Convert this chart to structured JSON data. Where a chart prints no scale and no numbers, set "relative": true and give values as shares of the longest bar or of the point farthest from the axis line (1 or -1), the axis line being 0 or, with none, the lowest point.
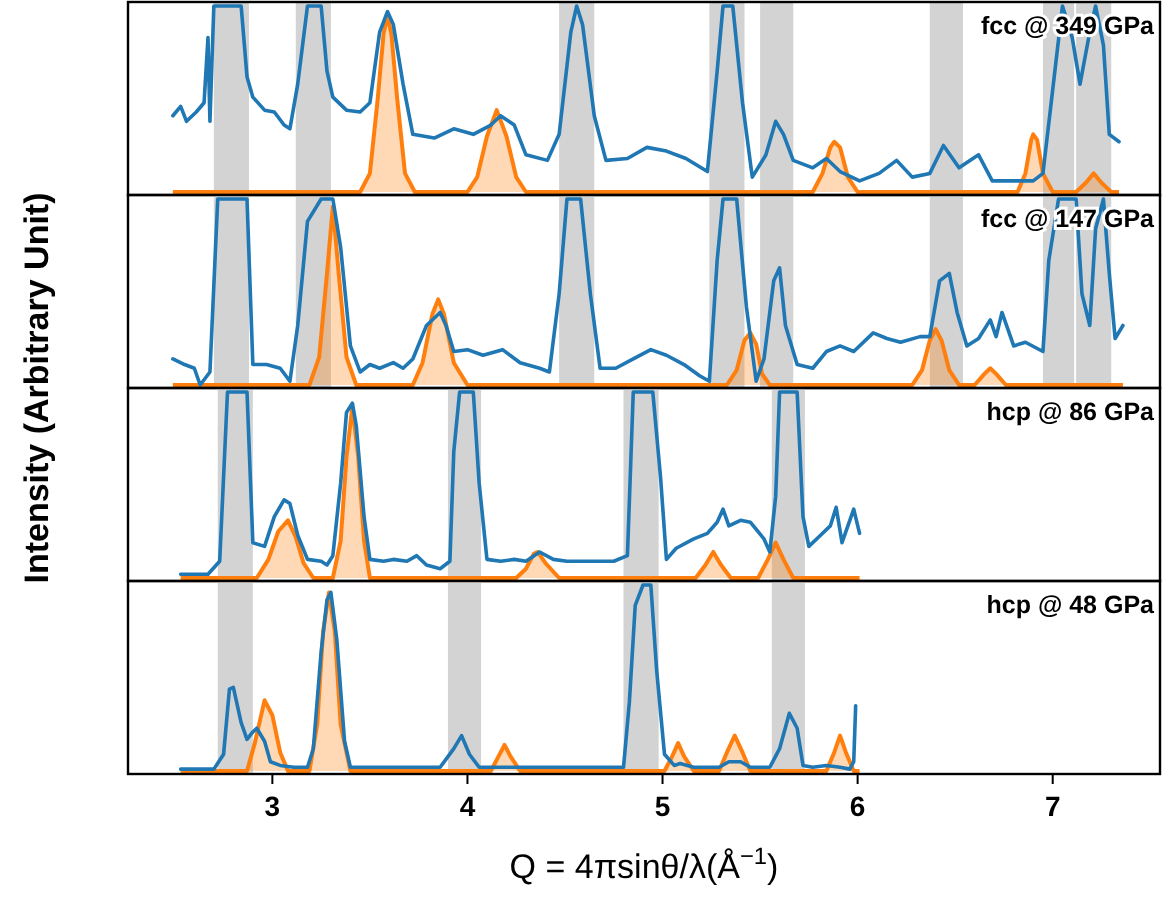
{
  "chart_data": [
    {
      "type": "line",
      "relative": true,
      "ylabel": "Intensity (Arbitrary Unit)",
      "xlim": [
        2.26,
        7.55
      ],
      "xticks": [
        3,
        4,
        5,
        6,
        7
      ],
      "tick_labels": false,
      "annotations": [
        "fcc @ 349 GPa"
      ],
      "bands": [
        {
          "axis": "x",
          "from": 2.7,
          "to": 2.88,
          "color": "#d3d3d3"
        },
        {
          "axis": "x",
          "from": 3.12,
          "to": 3.3,
          "color": "#d3d3d3"
        },
        {
          "axis": "x",
          "from": 4.47,
          "to": 4.65,
          "color": "#d3d3d3"
        },
        {
          "axis": "x",
          "from": 5.24,
          "to": 5.42,
          "color": "#d3d3d3"
        },
        {
          "axis": "x",
          "from": 5.5,
          "to": 5.67,
          "color": "#d3d3d3"
        },
        {
          "axis": "x",
          "from": 6.37,
          "to": 6.54,
          "color": "#d3d3d3"
        },
        {
          "axis": "x",
          "from": 6.95,
          "to": 7.11,
          "color": "#d3d3d3"
        },
        {
          "axis": "x",
          "from": 7.12,
          "to": 7.3,
          "color": "#d3d3d3"
        }
      ],
      "series": [
        {
          "type": "area",
          "color": "#ff7f0e",
          "x": [
            2.49,
            3.45,
            3.5,
            3.54,
            3.57,
            3.59,
            3.61,
            3.64,
            3.68,
            3.73,
            4.0,
            4.05,
            4.1,
            4.15,
            4.2,
            4.25,
            4.3,
            5.77,
            5.82,
            5.86,
            5.88,
            5.91,
            5.95,
            6.0,
            6.82,
            6.86,
            6.89,
            6.9,
            6.92,
            6.95,
            7.0,
            7.12,
            7.17,
            7.21,
            7.25,
            7.3,
            7.34
          ],
          "values": [
            0,
            0,
            0.1,
            0.5,
            0.85,
            0.95,
            0.85,
            0.5,
            0.1,
            0,
            0,
            0.08,
            0.3,
            0.44,
            0.3,
            0.08,
            0,
            0,
            0.1,
            0.24,
            0.27,
            0.24,
            0.08,
            0,
            0,
            0.1,
            0.28,
            0.31,
            0.28,
            0.1,
            0,
            0,
            0.05,
            0.1,
            0.05,
            0,
            0
          ]
        },
        {
          "type": "line",
          "color": "#1f77b4",
          "x": [
            2.49,
            2.53,
            2.56,
            2.61,
            2.65,
            2.67,
            2.68,
            2.7,
            2.77,
            2.84,
            2.87,
            2.9,
            2.96,
            3.01,
            3.06,
            3.09,
            3.13,
            3.18,
            3.21,
            3.25,
            3.28,
            3.31,
            3.38,
            3.45,
            3.5,
            3.55,
            3.59,
            3.62,
            3.67,
            3.72,
            3.83,
            3.93,
            4.03,
            4.12,
            4.17,
            4.24,
            4.3,
            4.41,
            4.47,
            4.53,
            4.56,
            4.59,
            4.65,
            4.71,
            4.82,
            4.92,
            5.02,
            5.12,
            5.23,
            5.28,
            5.31,
            5.36,
            5.41,
            5.46,
            5.53,
            5.58,
            5.62,
            5.67,
            5.77,
            5.84,
            5.91,
            6.01,
            6.11,
            6.2,
            6.28,
            6.37,
            6.44,
            6.52,
            6.62,
            6.69,
            6.8,
            6.9,
            6.95,
            7.0,
            7.05,
            7.1,
            7.14,
            7.19,
            7.22,
            7.26,
            7.29,
            7.34
          ],
          "values": [
            0.41,
            0.46,
            0.38,
            0.43,
            0.48,
            0.83,
            0.38,
            1,
            1,
            1,
            0.62,
            0.51,
            0.44,
            0.43,
            0.36,
            0.34,
            0.58,
            1,
            1,
            1,
            0.65,
            0.51,
            0.44,
            0.43,
            0.48,
            0.86,
            0.97,
            0.9,
            0.58,
            0.31,
            0.29,
            0.34,
            0.31,
            0.36,
            0.41,
            0.36,
            0.2,
            0.17,
            0.31,
            0.86,
            1,
            0.9,
            0.41,
            0.17,
            0.18,
            0.24,
            0.22,
            0.18,
            0.11,
            0.65,
            1,
            1,
            0.48,
            0.08,
            0.2,
            0.38,
            0.31,
            0.17,
            0.13,
            0.18,
            0.11,
            0.06,
            0.1,
            0.17,
            0.08,
            0.1,
            0.25,
            0.13,
            0.2,
            0.06,
            0.06,
            0.06,
            0.1,
            0.55,
            1,
            0.83,
            0.58,
            0.86,
            1,
            0.79,
            0.31,
            0.27
          ]
        }
      ]
    },
    {
      "type": "line",
      "relative": true,
      "xlim": [
        2.26,
        7.55
      ],
      "xticks": [
        3,
        4,
        5,
        6,
        7
      ],
      "tick_labels": false,
      "annotations": [
        "fcc @ 147 GPa"
      ],
      "bands": [
        {
          "axis": "x",
          "from": 2.7,
          "to": 2.88,
          "color": "#d3d3d3"
        },
        {
          "axis": "x",
          "from": 3.12,
          "to": 3.3,
          "color": "#d3d3d3"
        },
        {
          "axis": "x",
          "from": 4.47,
          "to": 4.65,
          "color": "#d3d3d3"
        },
        {
          "axis": "x",
          "from": 5.24,
          "to": 5.42,
          "color": "#d3d3d3"
        },
        {
          "axis": "x",
          "from": 5.5,
          "to": 5.67,
          "color": "#d3d3d3"
        },
        {
          "axis": "x",
          "from": 6.37,
          "to": 6.54,
          "color": "#d3d3d3"
        },
        {
          "axis": "x",
          "from": 6.95,
          "to": 7.11,
          "color": "#d3d3d3"
        },
        {
          "axis": "x",
          "from": 7.12,
          "to": 7.3,
          "color": "#d3d3d3"
        }
      ],
      "series": [
        {
          "type": "area",
          "color": "#ff7f0e",
          "x": [
            2.49,
            3.19,
            3.24,
            3.28,
            3.31,
            3.34,
            3.38,
            3.43,
            3.72,
            3.77,
            3.82,
            3.85,
            3.88,
            3.93,
            4.0,
            5.33,
            5.38,
            5.42,
            5.45,
            5.48,
            5.51,
            5.55,
            6.28,
            6.33,
            6.37,
            6.4,
            6.43,
            6.47,
            6.52,
            6.6,
            6.65,
            6.68,
            6.71,
            6.76,
            7.36
          ],
          "values": [
            0,
            0,
            0.15,
            0.6,
            0.96,
            0.6,
            0.15,
            0,
            0,
            0.12,
            0.38,
            0.46,
            0.38,
            0.12,
            0,
            0,
            0.08,
            0.24,
            0.28,
            0.22,
            0.06,
            0,
            0,
            0.08,
            0.24,
            0.3,
            0.24,
            0.08,
            0,
            0,
            0.06,
            0.09,
            0.06,
            0,
            0
          ]
        },
        {
          "type": "line",
          "color": "#1f77b4",
          "x": [
            2.49,
            2.55,
            2.6,
            2.63,
            2.68,
            2.72,
            2.87,
            2.9,
            2.97,
            3.04,
            3.09,
            3.13,
            3.18,
            3.25,
            3.31,
            3.35,
            3.4,
            3.45,
            3.5,
            3.55,
            3.62,
            3.67,
            3.72,
            3.79,
            3.86,
            3.89,
            3.93,
            4.0,
            4.08,
            4.18,
            4.27,
            4.37,
            4.42,
            4.47,
            4.51,
            4.58,
            4.63,
            4.68,
            4.76,
            4.85,
            4.94,
            5.02,
            5.11,
            5.19,
            5.24,
            5.28,
            5.31,
            5.38,
            5.43,
            5.48,
            5.52,
            5.57,
            5.6,
            5.63,
            5.69,
            5.77,
            5.84,
            5.91,
            5.98,
            6.08,
            6.15,
            6.22,
            6.32,
            6.37,
            6.42,
            6.47,
            6.51,
            6.56,
            6.62,
            6.68,
            6.71,
            6.74,
            6.8,
            6.86,
            6.95,
            6.98,
            7.03,
            7.12,
            7.15,
            7.19,
            7.22,
            7.26,
            7.29,
            7.32,
            7.36
          ],
          "values": [
            0.14,
            0.11,
            0.09,
            0,
            0.07,
            1,
            1,
            0.11,
            0.11,
            0.09,
            0.02,
            0.32,
            0.88,
            1,
            1,
            0.74,
            0.21,
            0.07,
            0.11,
            0.09,
            0.12,
            0.09,
            0.14,
            0.32,
            0.39,
            0.32,
            0.18,
            0.19,
            0.16,
            0.19,
            0.12,
            0.09,
            0.07,
            0.49,
            1,
            1,
            0.49,
            0.09,
            0.09,
            0.14,
            0.19,
            0.16,
            0.11,
            0.05,
            0.02,
            0.67,
            1,
            1,
            0.42,
            0.02,
            0.14,
            0.56,
            0.63,
            0.32,
            0.11,
            0.09,
            0.18,
            0.21,
            0.18,
            0.28,
            0.25,
            0.23,
            0.26,
            0.26,
            0.56,
            0.6,
            0.39,
            0.21,
            0.25,
            0.35,
            0.26,
            0.39,
            0.21,
            0.23,
            0.18,
            0.67,
            1,
            1,
            0.49,
            0.32,
            0.84,
            1,
            0.6,
            0.25,
            0.32
          ]
        }
      ]
    },
    {
      "type": "line",
      "relative": true,
      "xlim": [
        2.26,
        7.55
      ],
      "xticks": [
        3,
        4,
        5,
        6,
        7
      ],
      "tick_labels": false,
      "annotations": [
        "hcp @ 86 GPa"
      ],
      "bands": [
        {
          "axis": "x",
          "from": 2.72,
          "to": 2.9,
          "color": "#d3d3d3"
        },
        {
          "axis": "x",
          "from": 3.9,
          "to": 4.07,
          "color": "#d3d3d3"
        },
        {
          "axis": "x",
          "from": 4.8,
          "to": 4.98,
          "color": "#d3d3d3"
        },
        {
          "axis": "x",
          "from": 5.56,
          "to": 5.73,
          "color": "#d3d3d3"
        }
      ],
      "series": [
        {
          "type": "area",
          "color": "#ff7f0e",
          "x": [
            2.53,
            2.92,
            2.98,
            3.03,
            3.08,
            3.12,
            3.16,
            3.21,
            3.31,
            3.35,
            3.38,
            3.41,
            3.44,
            3.47,
            3.5,
            4.25,
            4.3,
            4.34,
            4.36,
            4.4,
            4.47,
            5.17,
            5.22,
            5.26,
            5.3,
            5.35,
            5.49,
            5.54,
            5.58,
            5.62,
            5.67,
            6.01
          ],
          "values": [
            0,
            0,
            0.1,
            0.25,
            0.31,
            0.22,
            0.08,
            0,
            0,
            0.2,
            0.65,
            0.92,
            0.65,
            0.2,
            0,
            0,
            0.05,
            0.13,
            0.14,
            0.08,
            0,
            0,
            0.07,
            0.14,
            0.07,
            0,
            0,
            0.1,
            0.19,
            0.1,
            0,
            0
          ]
        },
        {
          "type": "line",
          "color": "#1f77b4",
          "x": [
            2.53,
            2.6,
            2.67,
            2.73,
            2.77,
            2.87,
            2.9,
            2.96,
            3.01,
            3.06,
            3.09,
            3.13,
            3.18,
            3.25,
            3.28,
            3.31,
            3.35,
            3.38,
            3.41,
            3.43,
            3.47,
            3.5,
            3.57,
            3.62,
            3.69,
            3.74,
            3.79,
            3.86,
            3.91,
            3.93,
            3.96,
            4.03,
            4.06,
            4.1,
            4.17,
            4.24,
            4.3,
            4.37,
            4.44,
            4.51,
            4.61,
            4.75,
            4.82,
            4.85,
            4.95,
            4.99,
            5.02,
            5.07,
            5.16,
            5.23,
            5.28,
            5.31,
            5.34,
            5.4,
            5.45,
            5.52,
            5.55,
            5.58,
            5.6,
            5.69,
            5.72,
            5.75,
            5.81,
            5.86,
            5.89,
            5.92,
            5.96,
            5.98,
            6.01
          ],
          "values": [
            0.02,
            0.02,
            0.02,
            0.09,
            1,
            1,
            0.19,
            0.17,
            0.33,
            0.42,
            0.4,
            0.23,
            0.1,
            0.09,
            0.07,
            0.12,
            0.51,
            0.89,
            0.94,
            0.82,
            0.33,
            0.1,
            0.09,
            0.1,
            0.09,
            0.12,
            0.07,
            0.05,
            0.09,
            0.68,
            1,
            1,
            0.51,
            0.1,
            0.09,
            0.1,
            0.09,
            0.14,
            0.1,
            0.09,
            0.09,
            0.09,
            0.12,
            1,
            1,
            0.54,
            0.1,
            0.16,
            0.21,
            0.24,
            0.3,
            0.37,
            0.28,
            0.31,
            0.3,
            0.21,
            0.14,
            0.44,
            1,
            1,
            0.33,
            0.17,
            0.23,
            0.28,
            0.38,
            0.19,
            0.31,
            0.37,
            0.24
          ]
        }
      ]
    },
    {
      "type": "line",
      "relative": true,
      "xlabel": "Q = 4πsinθ/λ(Å$^{−1}$)",
      "xlim": [
        2.26,
        7.55
      ],
      "xticks": [
        3,
        4,
        5,
        6,
        7
      ],
      "tick_labels": "x",
      "annotations": [
        "hcp @ 48 GPa"
      ],
      "bands": [
        {
          "axis": "x",
          "from": 2.72,
          "to": 2.9,
          "color": "#d3d3d3"
        },
        {
          "axis": "x",
          "from": 3.9,
          "to": 4.07,
          "color": "#d3d3d3"
        },
        {
          "axis": "x",
          "from": 4.8,
          "to": 4.98,
          "color": "#d3d3d3"
        },
        {
          "axis": "x",
          "from": 5.56,
          "to": 5.73,
          "color": "#d3d3d3"
        }
      ],
      "series": [
        {
          "type": "area",
          "color": "#ff7f0e",
          "x": [
            2.53,
            2.87,
            2.91,
            2.96,
            3.0,
            3.04,
            3.08,
            3.19,
            3.23,
            3.26,
            3.29,
            3.32,
            3.35,
            3.4,
            4.12,
            4.16,
            4.19,
            4.22,
            4.27,
            5.01,
            5.05,
            5.08,
            5.11,
            5.16,
            5.29,
            5.33,
            5.37,
            5.41,
            5.45,
            5.84,
            5.88,
            5.91,
            5.94,
            5.98,
            6.01
          ],
          "values": [
            0,
            0,
            0.15,
            0.38,
            0.3,
            0.1,
            0,
            0,
            0.25,
            0.75,
            0.96,
            0.75,
            0.25,
            0,
            0,
            0.08,
            0.14,
            0.08,
            0,
            0,
            0.08,
            0.15,
            0.08,
            0,
            0,
            0.1,
            0.19,
            0.1,
            0,
            0,
            0.1,
            0.19,
            0.1,
            0,
            0
          ]
        },
        {
          "type": "line",
          "color": "#1f77b4",
          "x": [
            2.53,
            2.7,
            2.75,
            2.78,
            2.8,
            2.84,
            2.87,
            2.9,
            2.92,
            2.96,
            2.99,
            3.04,
            3.11,
            3.18,
            3.21,
            3.25,
            3.28,
            3.3,
            3.33,
            3.37,
            3.4,
            3.59,
            3.86,
            3.93,
            3.97,
            4.01,
            4.06,
            4.27,
            4.61,
            4.8,
            4.83,
            4.86,
            4.9,
            4.94,
            4.97,
            5.01,
            5.06,
            5.09,
            5.16,
            5.29,
            5.34,
            5.4,
            5.45,
            5.55,
            5.6,
            5.65,
            5.69,
            5.72,
            5.77,
            5.84,
            5.91,
            5.96,
            5.98,
            5.99
          ],
          "values": [
            0.01,
            0.01,
            0.09,
            0.44,
            0.45,
            0.26,
            0.17,
            0.21,
            0.23,
            0.16,
            0.05,
            0.03,
            0.02,
            0.02,
            0.12,
            0.64,
            0.92,
            0.96,
            0.71,
            0.16,
            0.02,
            0.02,
            0.02,
            0.12,
            0.19,
            0.09,
            0.02,
            0.02,
            0.02,
            0.02,
            0.37,
            0.89,
            1,
            1,
            0.54,
            0.09,
            0.03,
            0.04,
            0.02,
            0.02,
            0.05,
            0.05,
            0.02,
            0.02,
            0.12,
            0.31,
            0.23,
            0.03,
            0.02,
            0.03,
            0.02,
            0.01,
            0.05,
            0.35
          ]
        }
      ]
    }
  ]
}
